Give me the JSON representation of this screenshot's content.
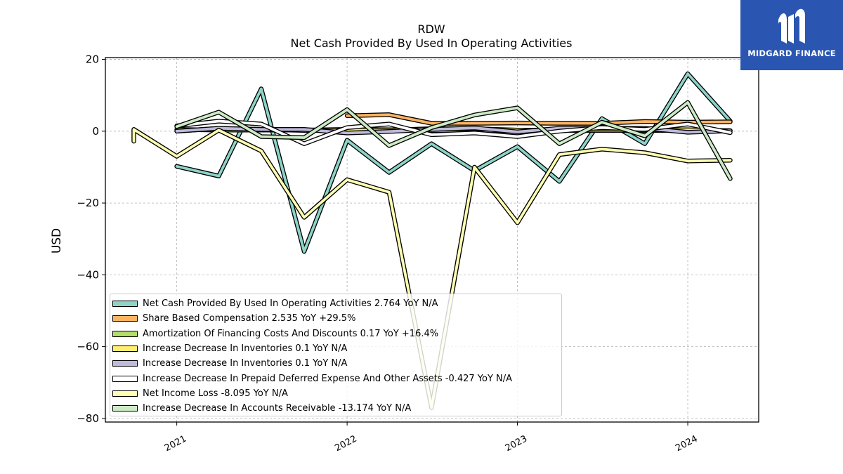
{
  "chart_data": {
    "type": "line",
    "title": "RDW",
    "subtitle": "Net Cash Provided By Used In Operating Activities",
    "xlabel": "",
    "ylabel": "USD",
    "ylim": [
      -81,
      20.5
    ],
    "xlim": [
      "2020-08-01",
      "2024-06-01"
    ],
    "yticks": [
      20,
      0,
      -20,
      -40,
      -60,
      -80
    ],
    "ytick_labels": [
      "20",
      "0",
      "−20",
      "−40",
      "−60",
      "−80"
    ],
    "xticks": [
      "2021-01-01",
      "2022-01-01",
      "2023-01-01",
      "2024-01-01"
    ],
    "xtick_labels": [
      "2021",
      "2022",
      "2023",
      "2024"
    ],
    "grid": true,
    "legend_position": "lower-left",
    "series": [
      {
        "name": "Net Cash Provided By Used In Operating Activities",
        "legend": "Net Cash Provided By Used In Operating Activities  2.764 YoY N/A",
        "color": "#8dd3c7",
        "points": [
          [
            "2021-01-01",
            -9.8
          ],
          [
            "2021-04-01",
            -12.5
          ],
          [
            "2021-07-01",
            11.8
          ],
          [
            "2021-10-01",
            -33.5
          ],
          [
            "2022-01-01",
            -2.5
          ],
          [
            "2022-04-01",
            -11.5
          ],
          [
            "2022-07-01",
            -3.5
          ],
          [
            "2022-10-01",
            -11
          ],
          [
            "2023-01-01",
            -4.3
          ],
          [
            "2023-04-01",
            -14
          ],
          [
            "2023-07-01",
            3.5
          ],
          [
            "2023-10-01",
            -3.5
          ],
          [
            "2024-01-01",
            16
          ],
          [
            "2024-04-01",
            2.8
          ]
        ]
      },
      {
        "name": "Share Based Compensation",
        "legend": "Share Based Compensation  2.535 YoY +29.5%",
        "color": "#fdb462",
        "points": [
          [
            "2022-01-01",
            4.3
          ],
          [
            "2022-04-01",
            4.6
          ],
          [
            "2022-07-01",
            2.2
          ],
          [
            "2022-10-01",
            2.2
          ],
          [
            "2023-01-01",
            2.3
          ],
          [
            "2023-04-01",
            2.2
          ],
          [
            "2023-07-01",
            2.2
          ],
          [
            "2023-10-01",
            2.7
          ],
          [
            "2024-01-01",
            2.5
          ],
          [
            "2024-04-01",
            2.6
          ]
        ]
      },
      {
        "name": "Amortization Of Financing Costs And Discounts",
        "legend": "Amortization Of Financing Costs And Discounts  0.17 YoY +16.4%",
        "color": "#b3de69",
        "points": [
          [
            "2021-01-01",
            0.5
          ],
          [
            "2021-04-01",
            0.3
          ],
          [
            "2021-07-01",
            0.3
          ],
          [
            "2021-10-01",
            0.3
          ],
          [
            "2022-01-01",
            0.5
          ],
          [
            "2022-04-01",
            0.4
          ],
          [
            "2022-07-01",
            0.2
          ],
          [
            "2022-10-01",
            0.2
          ],
          [
            "2023-01-01",
            0.1
          ],
          [
            "2023-04-01",
            0.2
          ],
          [
            "2023-07-01",
            0.2
          ],
          [
            "2023-10-01",
            0.2
          ],
          [
            "2024-01-01",
            0.2
          ],
          [
            "2024-04-01",
            0.17
          ]
        ]
      },
      {
        "name": "Increase Decrease In Inventories",
        "legend": "Increase Decrease In Inventories  0.1 YoY N/A",
        "color": "#ffed6f",
        "points": [
          [
            "2021-01-01",
            0
          ],
          [
            "2021-04-01",
            0.8
          ],
          [
            "2021-07-01",
            0.5
          ],
          [
            "2021-10-01",
            0.2
          ],
          [
            "2022-01-01",
            0.3
          ],
          [
            "2022-04-01",
            0.3
          ],
          [
            "2022-07-01",
            0.7
          ],
          [
            "2022-10-01",
            0.7
          ],
          [
            "2023-01-01",
            0.3
          ],
          [
            "2023-04-01",
            0.3
          ],
          [
            "2023-07-01",
            0.3
          ],
          [
            "2023-10-01",
            0.3
          ],
          [
            "2024-01-01",
            0.4
          ],
          [
            "2024-04-01",
            0.1
          ]
        ]
      },
      {
        "name": "Increase Decrease In Inventories",
        "legend": "Increase Decrease In Inventories  0.1 YoY N/A",
        "color": "#bebada",
        "points": [
          [
            "2021-01-01",
            0
          ],
          [
            "2021-04-01",
            0.8
          ],
          [
            "2021-07-01",
            0.5
          ],
          [
            "2021-10-01",
            0.5
          ],
          [
            "2022-01-01",
            -0.5
          ],
          [
            "2022-04-01",
            -0.1
          ],
          [
            "2022-07-01",
            0.5
          ],
          [
            "2022-10-01",
            0.9
          ],
          [
            "2023-01-01",
            -0.2
          ],
          [
            "2023-04-01",
            0.8
          ],
          [
            "2023-07-01",
            0.8
          ],
          [
            "2023-10-01",
            0.8
          ],
          [
            "2024-01-01",
            -0.3
          ],
          [
            "2024-04-01",
            0.1
          ]
        ]
      },
      {
        "name": "Increase Decrease In Prepaid Deferred Expense And Other Assets",
        "legend": "Increase Decrease In Prepaid Deferred Expense And Other Assets  -0.427 YoY N/A",
        "color": "#ffffff",
        "points": [
          [
            "2021-01-01",
            1.5
          ],
          [
            "2021-04-01",
            2.8
          ],
          [
            "2021-07-01",
            2
          ],
          [
            "2021-10-01",
            -3.5
          ],
          [
            "2022-01-01",
            1
          ],
          [
            "2022-04-01",
            2
          ],
          [
            "2022-07-01",
            -1
          ],
          [
            "2022-10-01",
            -0.5
          ],
          [
            "2023-01-01",
            -1.5
          ],
          [
            "2023-04-01",
            0
          ],
          [
            "2023-07-01",
            1
          ],
          [
            "2023-10-01",
            0.5
          ],
          [
            "2024-01-01",
            2
          ],
          [
            "2024-04-01",
            -0.4
          ]
        ]
      },
      {
        "name": "Net Income Loss",
        "legend": "Net Income Loss  -8.095 YoY N/A",
        "color": "#ffffb3",
        "points": [
          [
            "2020-10-01",
            -2.8
          ],
          [
            "2020-10-01",
            0.5
          ],
          [
            "2021-01-01",
            -7
          ],
          [
            "2021-04-01",
            0.3
          ],
          [
            "2021-07-01",
            -5.5
          ],
          [
            "2021-10-01",
            -24
          ],
          [
            "2022-01-01",
            -13.5
          ],
          [
            "2022-04-01",
            -17
          ],
          [
            "2022-07-01",
            -77
          ],
          [
            "2022-10-01",
            -10
          ],
          [
            "2023-01-01",
            -25.5
          ],
          [
            "2023-04-01",
            -6.5
          ],
          [
            "2023-07-01",
            -5
          ],
          [
            "2023-10-01",
            -6
          ],
          [
            "2024-01-01",
            -8.3
          ],
          [
            "2024-04-01",
            -8.1
          ]
        ]
      },
      {
        "name": "Increase Decrease In Accounts Receivable",
        "legend": "Increase Decrease In Accounts Receivable  -13.174 YoY N/A",
        "color": "#ccebc5",
        "points": [
          [
            "2021-01-01",
            1.3
          ],
          [
            "2021-04-01",
            5.3
          ],
          [
            "2021-07-01",
            -1.5
          ],
          [
            "2021-10-01",
            -1.8
          ],
          [
            "2022-01-01",
            6
          ],
          [
            "2022-04-01",
            -4
          ],
          [
            "2022-07-01",
            1
          ],
          [
            "2022-10-01",
            4.5
          ],
          [
            "2023-01-01",
            6.5
          ],
          [
            "2023-04-01",
            -3.5
          ],
          [
            "2023-07-01",
            2.5
          ],
          [
            "2023-10-01",
            -1.3
          ],
          [
            "2024-01-01",
            8
          ],
          [
            "2024-04-01",
            -13.2
          ]
        ]
      }
    ]
  },
  "branding": {
    "logo_text": "MIDGARD FINANCE",
    "logo_icon": "midgard-logo-mark",
    "background_color": "#2a56b2"
  }
}
